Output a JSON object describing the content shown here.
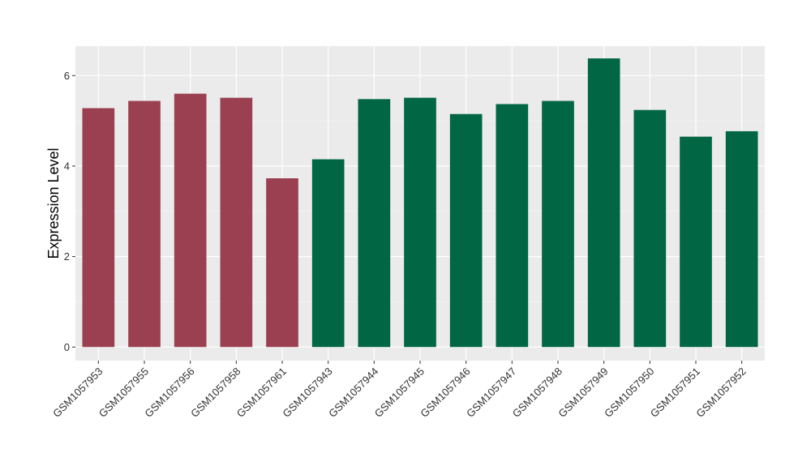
{
  "chart_data": {
    "type": "bar",
    "ylabel": "Expression Level",
    "ylim": [
      -0.3,
      6.65
    ],
    "yticks": [
      0,
      2,
      4,
      6
    ],
    "grid": true,
    "categories": [
      "GSM1057953",
      "GSM1057955",
      "GSM1057956",
      "GSM1057958",
      "GSM1057961",
      "GSM1057943",
      "GSM1057944",
      "GSM1057945",
      "GSM1057946",
      "GSM1057947",
      "GSM1057948",
      "GSM1057949",
      "GSM1057950",
      "GSM1057951",
      "GSM1057952"
    ],
    "values": [
      5.28,
      5.44,
      5.6,
      5.51,
      3.73,
      4.15,
      5.48,
      5.51,
      5.15,
      5.37,
      5.44,
      6.38,
      5.24,
      4.65,
      4.77
    ],
    "groups": [
      0,
      0,
      0,
      0,
      0,
      1,
      1,
      1,
      1,
      1,
      1,
      1,
      1,
      1,
      1
    ],
    "group_colors": [
      "#9A4050",
      "#006644"
    ]
  }
}
